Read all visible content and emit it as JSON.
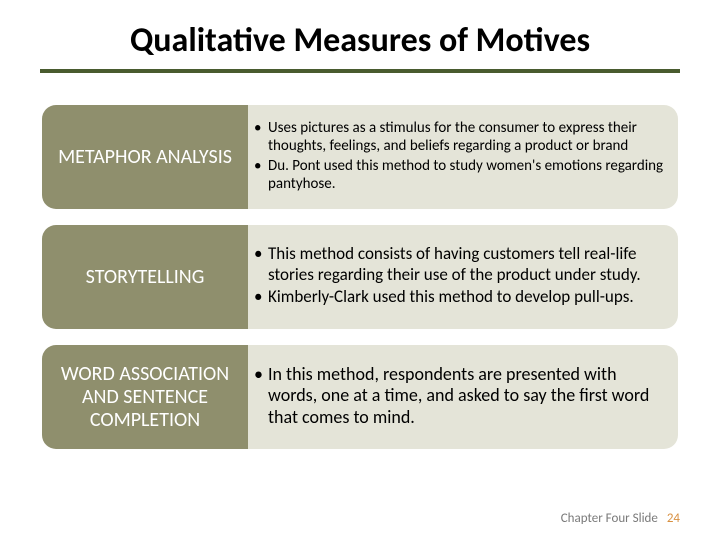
{
  "title": "Qualitative Measures of Motives",
  "divider_color": "#495b2f",
  "left_bg": "#8f8f6d",
  "right_bg": "#e4e4d8",
  "rows": [
    {
      "label": "METAPHOR ANALYSIS",
      "font_class": "fs-small",
      "bullets": [
        "Uses pictures as a stimulus for the consumer to express their thoughts, feelings, and beliefs regarding a product or brand",
        "Du. Pont used this method to study women's emotions regarding pantyhose."
      ]
    },
    {
      "label": "STORYTELLING",
      "font_class": "fs-med",
      "bullets": [
        "This method consists of having customers tell real-life stories regarding their use of the product under study.",
        "Kimberly-Clark used this method to develop pull-ups."
      ]
    },
    {
      "label": "WORD ASSOCIATION AND SENTENCE COMPLETION",
      "font_class": "fs-large",
      "bullets": [
        "In this method, respondents are presented with words, one at a time, and asked to say the first word that comes to mind."
      ]
    }
  ],
  "footer": {
    "text": "Chapter Four Slide",
    "number": "24"
  }
}
